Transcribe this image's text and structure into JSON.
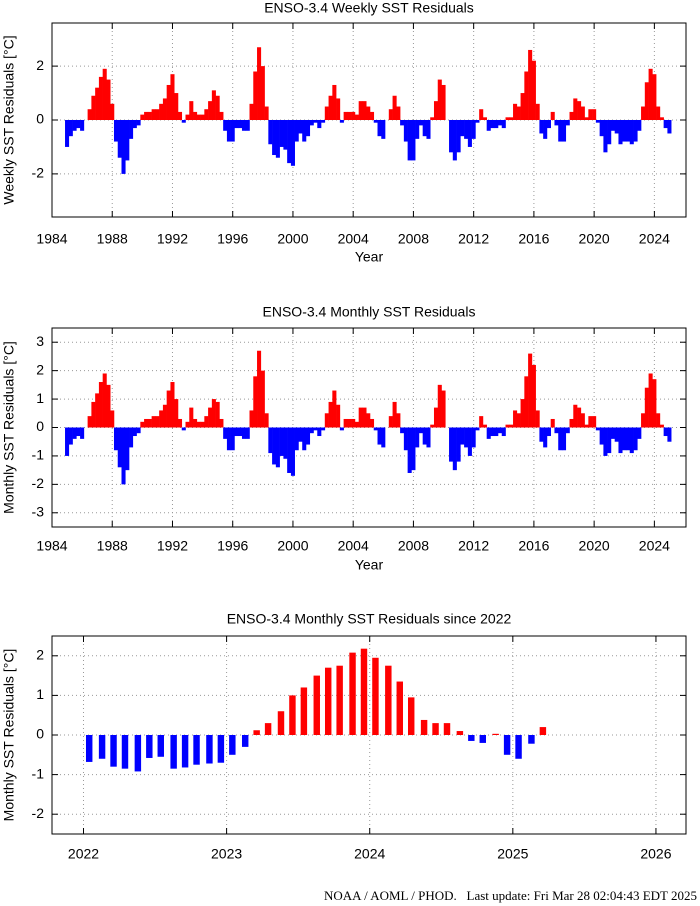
{
  "chart_data": [
    {
      "type": "bar",
      "title": "ENSO-3.4 Weekly SST Residuals",
      "x_label": "Year",
      "y_label": "Weekly SST Residuals [°C]",
      "positive_color": "#ff0000",
      "negative_color": "#0000ff",
      "grid": true,
      "xlim": [
        1984,
        2026.1
      ],
      "xticks": [
        1984,
        1988,
        1992,
        1996,
        2000,
        2004,
        2008,
        2012,
        2016,
        2020,
        2024
      ],
      "ylim": [
        -3.6,
        3.6
      ],
      "yticks": [
        -2,
        0,
        2
      ],
      "x": [
        1985,
        1985.25,
        1985.5,
        1985.75,
        1986,
        1986.25,
        1986.5,
        1986.75,
        1987,
        1987.25,
        1987.5,
        1987.75,
        1988,
        1988.25,
        1988.5,
        1988.75,
        1989,
        1989.25,
        1989.5,
        1989.75,
        1990,
        1990.25,
        1990.5,
        1990.75,
        1991,
        1991.25,
        1991.5,
        1991.75,
        1992,
        1992.25,
        1992.5,
        1992.75,
        1993,
        1993.25,
        1993.5,
        1993.75,
        1994,
        1994.25,
        1994.5,
        1994.75,
        1995,
        1995.25,
        1995.5,
        1995.75,
        1996,
        1996.25,
        1996.5,
        1996.75,
        1997,
        1997.25,
        1997.5,
        1997.75,
        1998,
        1998.25,
        1998.5,
        1998.75,
        1999,
        1999.25,
        1999.5,
        1999.75,
        2000,
        2000.25,
        2000.5,
        2000.75,
        2001,
        2001.25,
        2001.5,
        2001.75,
        2002,
        2002.25,
        2002.5,
        2002.75,
        2003,
        2003.25,
        2003.5,
        2003.75,
        2004,
        2004.25,
        2004.5,
        2004.75,
        2005,
        2005.25,
        2005.5,
        2005.75,
        2006,
        2006.25,
        2006.5,
        2006.75,
        2007,
        2007.25,
        2007.5,
        2007.75,
        2008,
        2008.25,
        2008.5,
        2008.75,
        2009,
        2009.25,
        2009.5,
        2009.75,
        2010,
        2010.25,
        2010.5,
        2010.75,
        2011,
        2011.25,
        2011.5,
        2011.75,
        2012,
        2012.25,
        2012.5,
        2012.75,
        2013,
        2013.25,
        2013.5,
        2013.75,
        2014,
        2014.25,
        2014.5,
        2014.75,
        2015,
        2015.25,
        2015.5,
        2015.75,
        2016,
        2016.25,
        2016.5,
        2016.75,
        2017,
        2017.25,
        2017.5,
        2017.75,
        2018,
        2018.25,
        2018.5,
        2018.75,
        2019,
        2019.25,
        2019.5,
        2019.75,
        2020,
        2020.25,
        2020.5,
        2020.75,
        2021,
        2021.25,
        2021.5,
        2021.75,
        2022,
        2022.25,
        2022.5,
        2022.75,
        2023,
        2023.25,
        2023.5,
        2023.75,
        2024,
        2024.25,
        2024.5,
        2024.75,
        2025
      ],
      "values": [
        -1.0,
        -0.6,
        -0.4,
        -0.3,
        -0.4,
        0,
        0.4,
        0.9,
        1.2,
        1.6,
        1.9,
        1.5,
        0.6,
        -0.8,
        -1.4,
        -2.0,
        -1.5,
        -0.7,
        -0.3,
        -0.2,
        0.2,
        0.3,
        0.3,
        0.4,
        0.4,
        0.6,
        0.8,
        1.3,
        1.7,
        1.0,
        0.3,
        -0.1,
        0.2,
        0.7,
        0.3,
        0.2,
        0.2,
        0.4,
        0.7,
        1.1,
        0.9,
        0.3,
        -0.4,
        -0.8,
        -0.8,
        -0.3,
        -0.3,
        -0.4,
        -0.4,
        0.6,
        1.8,
        2.7,
        2.0,
        0.5,
        -0.9,
        -1.3,
        -1.4,
        -1.0,
        -1.1,
        -1.6,
        -1.7,
        -0.8,
        -0.5,
        -0.8,
        -0.6,
        -0.2,
        -0.1,
        -0.3,
        -0.1,
        0.5,
        0.9,
        1.3,
        0.8,
        -0.1,
        0.3,
        0.3,
        0.3,
        0.2,
        0.7,
        0.7,
        0.5,
        0.3,
        -0.1,
        -0.6,
        -0.7,
        0,
        0.4,
        0.9,
        0.5,
        -0.2,
        -0.8,
        -1.5,
        -1.5,
        -0.7,
        -0.2,
        -0.6,
        -0.7,
        0.1,
        0.7,
        1.5,
        1.3,
        0,
        -1.2,
        -1.5,
        -1.2,
        -0.6,
        -0.7,
        -1.0,
        -0.7,
        -0.1,
        0.4,
        0.1,
        -0.4,
        -0.3,
        -0.3,
        -0.2,
        -0.3,
        0.1,
        0.1,
        0.6,
        0.5,
        1.0,
        1.8,
        2.6,
        2.2,
        0.6,
        -0.5,
        -0.7,
        -0.3,
        0.3,
        -0.2,
        -0.8,
        -0.8,
        -0.2,
        0.3,
        0.8,
        0.7,
        0.5,
        0.1,
        0.4,
        0.4,
        -0.1,
        -0.6,
        -1.2,
        -0.9,
        -0.4,
        -0.5,
        -0.9,
        -0.8,
        -0.8,
        -0.9,
        -0.8,
        -0.4,
        0.5,
        1.4,
        1.9,
        1.7,
        0.5,
        0.1,
        -0.3,
        -0.5
      ]
    },
    {
      "type": "bar",
      "title": "ENSO-3.4 Monthly SST Residuals",
      "x_label": "Year",
      "y_label": "Monthly SST Residuals [°C]",
      "positive_color": "#ff0000",
      "negative_color": "#0000ff",
      "grid": true,
      "xlim": [
        1984,
        2026.1
      ],
      "xticks": [
        1984,
        1988,
        1992,
        1996,
        2000,
        2004,
        2008,
        2012,
        2016,
        2020,
        2024
      ],
      "ylim": [
        -3.5,
        3.5
      ],
      "yticks": [
        -3,
        -2,
        -1,
        0,
        1,
        2,
        3
      ],
      "x": [
        1985,
        1985.25,
        1985.5,
        1985.75,
        1986,
        1986.25,
        1986.5,
        1986.75,
        1987,
        1987.25,
        1987.5,
        1987.75,
        1988,
        1988.25,
        1988.5,
        1988.75,
        1989,
        1989.25,
        1989.5,
        1989.75,
        1990,
        1990.25,
        1990.5,
        1990.75,
        1991,
        1991.25,
        1991.5,
        1991.75,
        1992,
        1992.25,
        1992.5,
        1992.75,
        1993,
        1993.25,
        1993.5,
        1993.75,
        1994,
        1994.25,
        1994.5,
        1994.75,
        1995,
        1995.25,
        1995.5,
        1995.75,
        1996,
        1996.25,
        1996.5,
        1996.75,
        1997,
        1997.25,
        1997.5,
        1997.75,
        1998,
        1998.25,
        1998.5,
        1998.75,
        1999,
        1999.25,
        1999.5,
        1999.75,
        2000,
        2000.25,
        2000.5,
        2000.75,
        2001,
        2001.25,
        2001.5,
        2001.75,
        2002,
        2002.25,
        2002.5,
        2002.75,
        2003,
        2003.25,
        2003.5,
        2003.75,
        2004,
        2004.25,
        2004.5,
        2004.75,
        2005,
        2005.25,
        2005.5,
        2005.75,
        2006,
        2006.25,
        2006.5,
        2006.75,
        2007,
        2007.25,
        2007.5,
        2007.75,
        2008,
        2008.25,
        2008.5,
        2008.75,
        2009,
        2009.25,
        2009.5,
        2009.75,
        2010,
        2010.25,
        2010.5,
        2010.75,
        2011,
        2011.25,
        2011.5,
        2011.75,
        2012,
        2012.25,
        2012.5,
        2012.75,
        2013,
        2013.25,
        2013.5,
        2013.75,
        2014,
        2014.25,
        2014.5,
        2014.75,
        2015,
        2015.25,
        2015.5,
        2015.75,
        2016,
        2016.25,
        2016.5,
        2016.75,
        2017,
        2017.25,
        2017.5,
        2017.75,
        2018,
        2018.25,
        2018.5,
        2018.75,
        2019,
        2019.25,
        2019.5,
        2019.75,
        2020,
        2020.25,
        2020.5,
        2020.75,
        2021,
        2021.25,
        2021.5,
        2021.75,
        2022,
        2022.25,
        2022.5,
        2022.75,
        2023,
        2023.25,
        2023.5,
        2023.75,
        2024,
        2024.25,
        2024.5,
        2024.75,
        2025
      ],
      "values": [
        -1.0,
        -0.6,
        -0.4,
        -0.3,
        -0.4,
        0,
        0.4,
        0.9,
        1.2,
        1.6,
        1.9,
        1.5,
        0.6,
        -0.8,
        -1.4,
        -2.0,
        -1.5,
        -0.7,
        -0.3,
        -0.2,
        0.2,
        0.3,
        0.3,
        0.4,
        0.4,
        0.6,
        0.8,
        1.3,
        1.6,
        1.0,
        0.3,
        -0.1,
        0.2,
        0.7,
        0.3,
        0.2,
        0.2,
        0.4,
        0.7,
        1.0,
        0.9,
        0.3,
        -0.4,
        -0.8,
        -0.8,
        -0.3,
        -0.3,
        -0.4,
        -0.4,
        0.6,
        1.8,
        2.7,
        2.0,
        0.5,
        -0.9,
        -1.3,
        -1.4,
        -1.0,
        -1.1,
        -1.6,
        -1.7,
        -0.8,
        -0.5,
        -0.8,
        -0.6,
        -0.2,
        -0.1,
        -0.3,
        -0.1,
        0.5,
        0.9,
        1.3,
        0.8,
        -0.1,
        0.3,
        0.3,
        0.3,
        0.2,
        0.7,
        0.7,
        0.5,
        0.3,
        -0.1,
        -0.6,
        -0.7,
        0,
        0.4,
        0.9,
        0.5,
        -0.2,
        -0.8,
        -1.6,
        -1.5,
        -0.7,
        -0.2,
        -0.6,
        -0.7,
        0.1,
        0.7,
        1.5,
        1.3,
        0,
        -1.2,
        -1.5,
        -1.2,
        -0.6,
        -0.7,
        -1.0,
        -0.7,
        -0.1,
        0.4,
        0.1,
        -0.4,
        -0.3,
        -0.3,
        -0.2,
        -0.3,
        0.1,
        0.1,
        0.6,
        0.5,
        1.0,
        1.8,
        2.6,
        2.2,
        0.6,
        -0.5,
        -0.7,
        -0.3,
        0.3,
        -0.2,
        -0.8,
        -0.8,
        -0.2,
        0.3,
        0.8,
        0.7,
        0.5,
        0.1,
        0.4,
        0.4,
        -0.1,
        -0.6,
        -1.0,
        -0.9,
        -0.4,
        -0.5,
        -0.9,
        -0.8,
        -0.8,
        -0.9,
        -0.8,
        -0.4,
        0.5,
        1.4,
        1.9,
        1.7,
        0.5,
        0.1,
        -0.3,
        -0.5
      ]
    },
    {
      "type": "bar",
      "title": "ENSO-3.4 Monthly SST Residuals since 2022",
      "y_label": "Monthly SST Residuals [°C]",
      "positive_color": "#ff0000",
      "negative_color": "#0000ff",
      "grid": true,
      "xlim": [
        2021.78,
        2026.21
      ],
      "xticks": [
        2022,
        2023,
        2024,
        2025,
        2026
      ],
      "ylim": [
        -2.5,
        2.5
      ],
      "yticks": [
        -2,
        -1,
        0,
        1,
        2
      ],
      "x": [
        2022.04,
        2022.13,
        2022.21,
        2022.29,
        2022.38,
        2022.46,
        2022.54,
        2022.63,
        2022.71,
        2022.79,
        2022.88,
        2022.96,
        2023.04,
        2023.13,
        2023.21,
        2023.29,
        2023.38,
        2023.46,
        2023.54,
        2023.63,
        2023.71,
        2023.79,
        2023.88,
        2023.96,
        2024.04,
        2024.13,
        2024.21,
        2024.29,
        2024.38,
        2024.46,
        2024.54,
        2024.63,
        2024.71,
        2024.79,
        2024.88,
        2024.96,
        2025.04,
        2025.13,
        2025.21
      ],
      "values": [
        -0.68,
        -0.6,
        -0.8,
        -0.85,
        -0.92,
        -0.58,
        -0.55,
        -0.85,
        -0.82,
        -0.75,
        -0.72,
        -0.7,
        -0.5,
        -0.3,
        0.12,
        0.3,
        0.6,
        1.0,
        1.2,
        1.5,
        1.7,
        1.75,
        2.08,
        2.18,
        1.95,
        1.75,
        1.35,
        0.95,
        0.38,
        0.3,
        0.3,
        0.1,
        -0.15,
        -0.2,
        0.03,
        -0.5,
        -0.6,
        -0.22,
        0.2
      ]
    }
  ],
  "footer": "NOAA / AOML / PHOD.   Last update: Fri Mar 28 02:04:43 EDT 2025"
}
